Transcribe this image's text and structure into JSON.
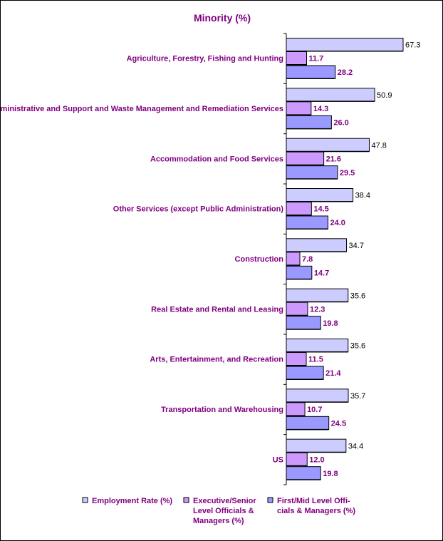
{
  "colors": {
    "text": "#800080",
    "axis": "#000000",
    "value_text": "#000000"
  },
  "chart_data": {
    "type": "bar",
    "orientation": "horizontal",
    "title": "Minority (%)",
    "xlabel": "",
    "ylabel": "",
    "xlim": [
      0,
      70
    ],
    "grid": false,
    "legend_position": "bottom",
    "categories": [
      "Agriculture, Forestry, Fishing and Hunting",
      "Administrative and Support and Waste Management and Remediation Services",
      "Accommodation and Food Services",
      "Other Services (except Public Administration)",
      "Construction",
      "Real Estate and Rental and Leasing",
      "Arts, Entertainment, and Recreation",
      "Transportation and Warehousing",
      "US"
    ],
    "series": [
      {
        "name": "Employment Rate (%)",
        "legend_lines": [
          "Employment Rate (%)"
        ],
        "color": "#ccccff",
        "label_color": "#000000",
        "label_bold": false,
        "values": [
          67.3,
          50.9,
          47.8,
          38.4,
          34.7,
          35.6,
          35.6,
          35.7,
          34.4
        ],
        "value_labels": [
          "67.3",
          "50.9",
          "47.8",
          "38.4",
          "34.7",
          "35.6",
          "35.6",
          "35.7",
          "34.4"
        ]
      },
      {
        "name": "Executive/Senior Level Officials & Managers (%)",
        "legend_lines": [
          "Executive/Senior",
          "Level Officials &",
          "Managers (%)"
        ],
        "color": "#cc99ff",
        "label_color": "#800080",
        "label_bold": true,
        "values": [
          11.7,
          14.3,
          21.6,
          14.5,
          7.8,
          12.3,
          11.5,
          10.7,
          12.0
        ],
        "value_labels": [
          "11.7",
          "14.3",
          "21.6",
          "14.5",
          "7.8",
          "12.3",
          "11.5",
          "10.7",
          "12.0"
        ]
      },
      {
        "name": "First/Mid Level Officials & Managers (%)",
        "legend_lines": [
          "First/Mid Level Offi-",
          "cials & Managers (%)"
        ],
        "color": "#9999ff",
        "label_color": "#800080",
        "label_bold": true,
        "values": [
          28.2,
          26.0,
          29.5,
          24.0,
          14.7,
          19.8,
          21.4,
          24.5,
          19.8
        ],
        "value_labels": [
          "28.2",
          "26.0",
          "29.5",
          "24.0",
          "14.7",
          "19.8",
          "21.4",
          "24.5",
          "19.8"
        ]
      }
    ]
  }
}
